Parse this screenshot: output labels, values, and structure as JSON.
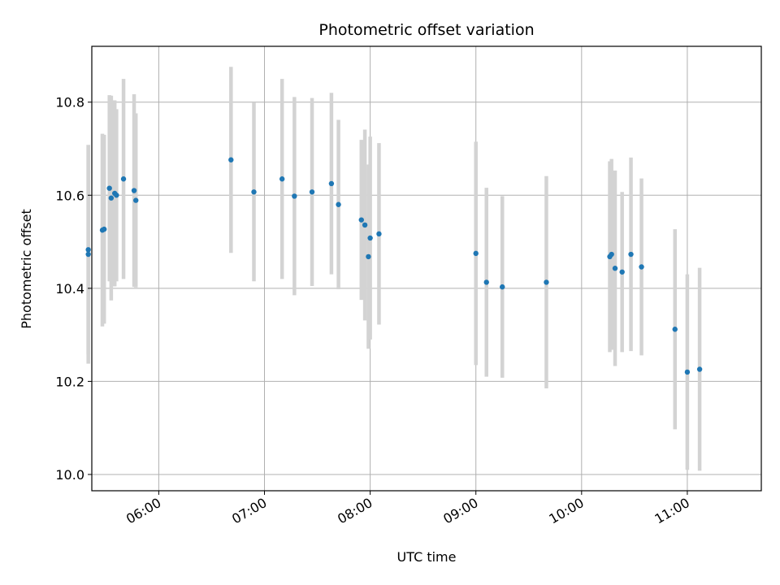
{
  "chart_data": {
    "type": "scatter",
    "title": "Photometric offset variation",
    "xlabel": "UTC time",
    "ylabel": "Photometric offset",
    "x_axis_type": "time",
    "xlim": [
      "05:22",
      "11:42"
    ],
    "ylim": [
      9.965,
      10.92
    ],
    "x_ticks": [
      "06:00",
      "07:00",
      "08:00",
      "09:00",
      "10:00",
      "11:00"
    ],
    "y_ticks": [
      10.0,
      10.2,
      10.4,
      10.6,
      10.8
    ],
    "grid": true,
    "colors": {
      "points": "#1f77b4",
      "errorbars": "#d3d3d3",
      "grid": "#b0b0b0"
    },
    "series": [
      {
        "points": [
          {
            "x": "05:20",
            "y": 10.473,
            "err": 0.235
          },
          {
            "x": "05:20",
            "y": 10.483,
            "err": 0.225
          },
          {
            "x": "05:28",
            "y": 10.525,
            "err": 0.207
          },
          {
            "x": "05:29",
            "y": 10.527,
            "err": 0.203
          },
          {
            "x": "05:32",
            "y": 10.615,
            "err": 0.2
          },
          {
            "x": "05:33",
            "y": 10.594,
            "err": 0.22
          },
          {
            "x": "05:35",
            "y": 10.604,
            "err": 0.2
          },
          {
            "x": "05:36",
            "y": 10.6,
            "err": 0.185
          },
          {
            "x": "05:40",
            "y": 10.635,
            "err": 0.215
          },
          {
            "x": "05:46",
            "y": 10.61,
            "err": 0.207
          },
          {
            "x": "05:47",
            "y": 10.589,
            "err": 0.187
          },
          {
            "x": "06:41",
            "y": 10.676,
            "err": 0.2
          },
          {
            "x": "06:54",
            "y": 10.607,
            "err": 0.192
          },
          {
            "x": "07:10",
            "y": 10.635,
            "err": 0.215
          },
          {
            "x": "07:17",
            "y": 10.598,
            "err": 0.213
          },
          {
            "x": "07:27",
            "y": 10.607,
            "err": 0.202
          },
          {
            "x": "07:38",
            "y": 10.625,
            "err": 0.195
          },
          {
            "x": "07:42",
            "y": 10.58,
            "err": 0.182
          },
          {
            "x": "07:55",
            "y": 10.547,
            "err": 0.172
          },
          {
            "x": "07:57",
            "y": 10.536,
            "err": 0.205
          },
          {
            "x": "07:59",
            "y": 10.468,
            "err": 0.198
          },
          {
            "x": "08:00",
            "y": 10.508,
            "err": 0.218
          },
          {
            "x": "08:05",
            "y": 10.517,
            "err": 0.195
          },
          {
            "x": "09:00",
            "y": 10.475,
            "err": 0.24
          },
          {
            "x": "09:06",
            "y": 10.413,
            "err": 0.203
          },
          {
            "x": "09:15",
            "y": 10.403,
            "err": 0.195
          },
          {
            "x": "09:40",
            "y": 10.413,
            "err": 0.228
          },
          {
            "x": "10:16",
            "y": 10.468,
            "err": 0.205
          },
          {
            "x": "10:17",
            "y": 10.473,
            "err": 0.205
          },
          {
            "x": "10:19",
            "y": 10.443,
            "err": 0.21
          },
          {
            "x": "10:23",
            "y": 10.435,
            "err": 0.172
          },
          {
            "x": "10:28",
            "y": 10.473,
            "err": 0.208
          },
          {
            "x": "10:34",
            "y": 10.446,
            "err": 0.19
          },
          {
            "x": "10:53",
            "y": 10.312,
            "err": 0.215
          },
          {
            "x": "11:00",
            "y": 10.22,
            "err": 0.21
          },
          {
            "x": "11:07",
            "y": 10.226,
            "err": 0.218
          }
        ]
      }
    ]
  }
}
